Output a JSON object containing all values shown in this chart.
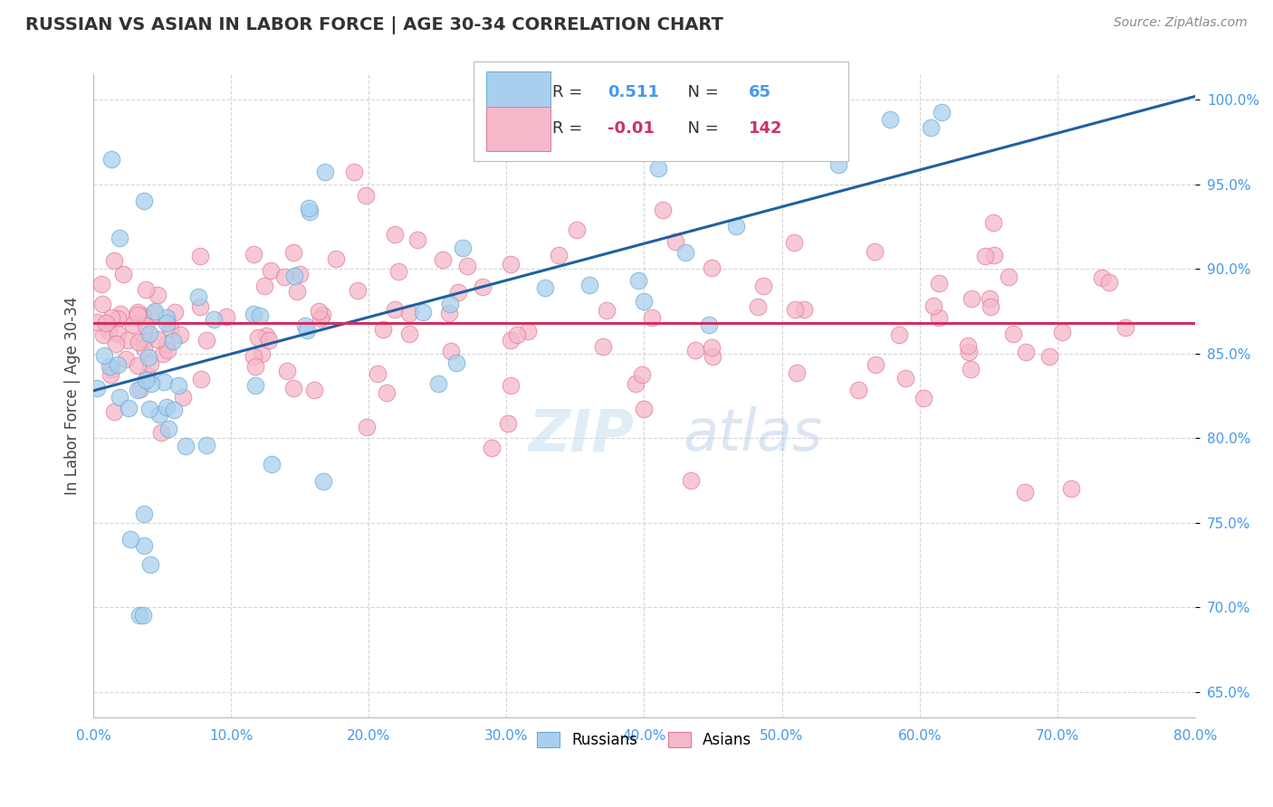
{
  "title": "RUSSIAN VS ASIAN IN LABOR FORCE | AGE 30-34 CORRELATION CHART",
  "source": "Source: ZipAtlas.com",
  "ylabel": "In Labor Force | Age 30-34",
  "xmin": 0.0,
  "xmax": 0.8,
  "ymin": 0.635,
  "ymax": 1.015,
  "ytick_values": [
    0.65,
    0.7,
    0.75,
    0.8,
    0.85,
    0.9,
    0.95,
    1.0
  ],
  "xtick_values": [
    0.0,
    0.1,
    0.2,
    0.3,
    0.4,
    0.5,
    0.6,
    0.7,
    0.8
  ],
  "russian_color": "#A8D0EE",
  "asian_color": "#F5B8C8",
  "russian_edge_color": "#6AAAD4",
  "asian_edge_color": "#E07898",
  "trend_russian_color": "#2060A0",
  "trend_asian_color": "#D03060",
  "R_russian": 0.511,
  "N_russian": 65,
  "R_asian": -0.01,
  "N_asian": 142,
  "watermark_zip": "ZIP",
  "watermark_atlas": "atlas",
  "grid_color": "#CCCCCC",
  "background_color": "#FFFFFF",
  "trend_ru_x0": 0.0,
  "trend_ru_y0": 0.828,
  "trend_ru_x1": 0.8,
  "trend_ru_y1": 1.002,
  "trend_as_y": 0.868
}
